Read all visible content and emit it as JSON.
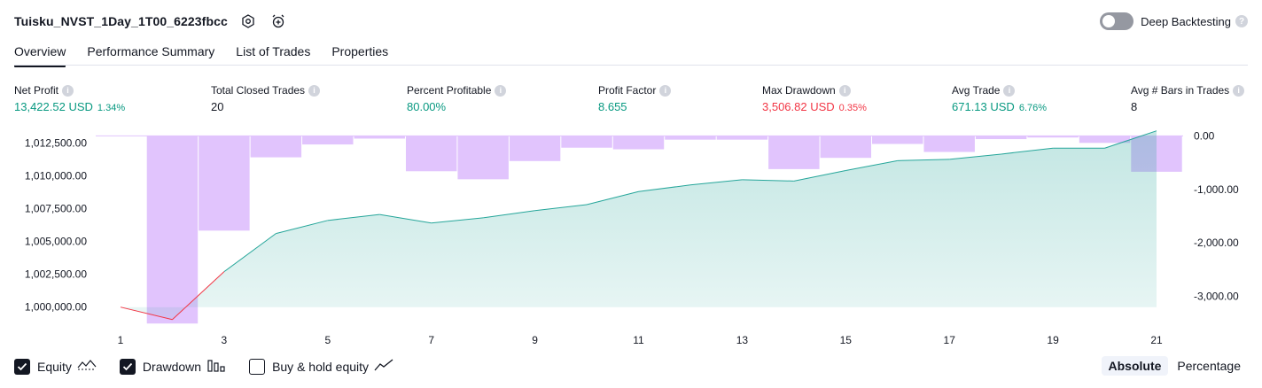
{
  "header": {
    "strategy_title": "Tuisku_NVST_1Day_1T00_6223fbcc",
    "settings_icon": "hexagon-gear-icon",
    "alert_icon": "alarm-add-icon",
    "deep_backtesting_label": "Deep Backtesting",
    "deep_backtesting_on": false
  },
  "tabs": [
    {
      "label": "Overview",
      "active": true
    },
    {
      "label": "Performance Summary",
      "active": false
    },
    {
      "label": "List of Trades",
      "active": false
    },
    {
      "label": "Properties",
      "active": false
    }
  ],
  "metrics": {
    "net_profit": {
      "label": "Net Profit",
      "value": "13,422.52 USD",
      "pct": "1.34%"
    },
    "total_closed_trades": {
      "label": "Total Closed Trades",
      "value": "20"
    },
    "percent_profitable": {
      "label": "Percent Profitable",
      "value": "80.00%"
    },
    "profit_factor": {
      "label": "Profit Factor",
      "value": "8.655"
    },
    "max_drawdown": {
      "label": "Max Drawdown",
      "value": "3,506.82 USD",
      "pct": "0.35%"
    },
    "avg_trade": {
      "label": "Avg Trade",
      "value": "671.13 USD",
      "pct": "6.76%"
    },
    "avg_bars": {
      "label": "Avg # Bars in Trades",
      "value": "8"
    }
  },
  "colors": {
    "positive": "#089981",
    "negative": "#f23645",
    "equity_line": "#26a69a",
    "drawdown_bar": "#e1c4fd"
  },
  "chart_data": {
    "type": "area",
    "x": [
      1,
      2,
      3,
      4,
      5,
      6,
      7,
      8,
      9,
      10,
      11,
      12,
      13,
      14,
      15,
      16,
      17,
      18,
      19,
      20,
      21
    ],
    "x_ticks": [
      "1",
      "3",
      "5",
      "7",
      "9",
      "11",
      "13",
      "15",
      "17",
      "19",
      "21"
    ],
    "y_left_ticks": [
      "1,012,500.00",
      "1,010,000.00",
      "1,007,500.00",
      "1,005,000.00",
      "1,002,500.00",
      "1,000,000.00"
    ],
    "y_right_ticks": [
      "0.00",
      "-1,000.00",
      "-2,000.00",
      "-3,000.00"
    ],
    "ylim_left": [
      998900,
      1013400
    ],
    "ylim_right": [
      -3470,
      90
    ],
    "series": [
      {
        "name": "Equity",
        "type": "area",
        "values": [
          1000000,
          999050,
          1002700,
          1005600,
          1006600,
          1007050,
          1006400,
          1006800,
          1007350,
          1007800,
          1008800,
          1009300,
          1009700,
          1009600,
          1010400,
          1011150,
          1011250,
          1011650,
          1012100,
          1012100,
          1013420
        ]
      },
      {
        "name": "Drawdown",
        "type": "bar",
        "values": [
          0,
          -3506.82,
          -1770,
          -400,
          -160,
          -50,
          -660,
          -810,
          -470,
          -220,
          -250,
          -70,
          -70,
          -620,
          -410,
          -150,
          -300,
          -60,
          -30,
          -130,
          -670
        ]
      }
    ]
  },
  "legend": {
    "equity": {
      "label": "Equity",
      "checked": true
    },
    "drawdown": {
      "label": "Drawdown",
      "checked": true
    },
    "buy_hold": {
      "label": "Buy & hold equity",
      "checked": false
    }
  },
  "view_modes": [
    {
      "label": "Absolute",
      "active": true
    },
    {
      "label": "Percentage",
      "active": false
    }
  ]
}
